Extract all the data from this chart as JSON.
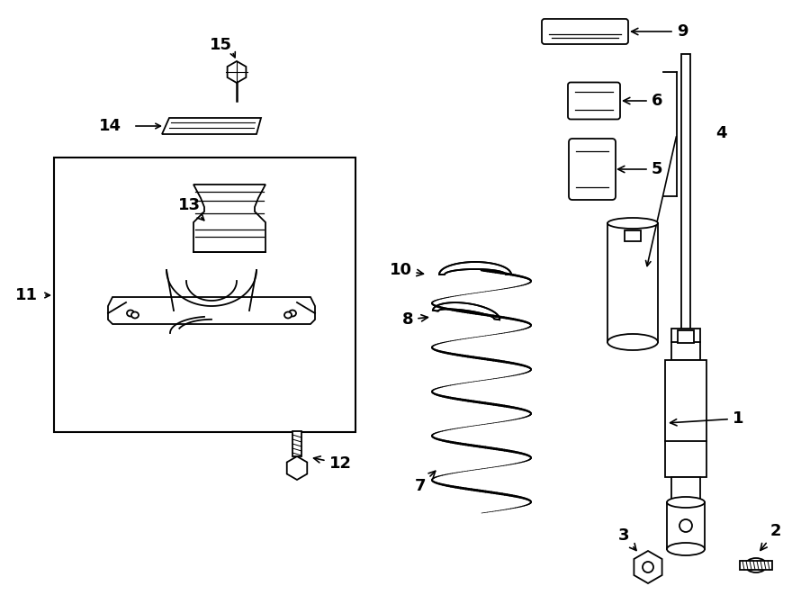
{
  "background_color": "#ffffff",
  "line_color": "#000000",
  "fig_width": 9.0,
  "fig_height": 6.61,
  "dpi": 100,
  "label_fontsize": 13
}
